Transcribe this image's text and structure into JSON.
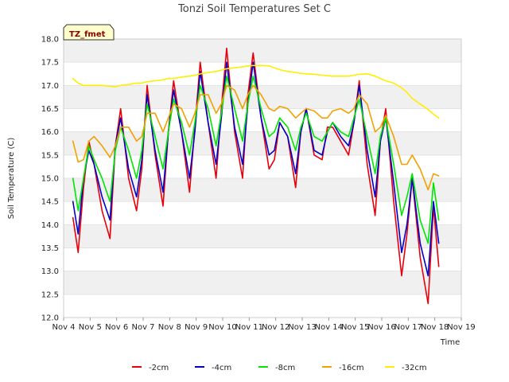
{
  "chart_data": {
    "type": "line",
    "title": "Tonzi Soil Temperatures Set C",
    "xlabel": "Time",
    "ylabel": "Soil Temperature (C)",
    "badge": "TZ_fmet",
    "x_ticks": [
      "Nov 4",
      "Nov 5",
      "Nov 6",
      "Nov 7",
      "Nov 8",
      "Nov 9",
      "Nov 10",
      "Nov 11",
      "Nov 12",
      "Nov 13",
      "Nov 14",
      "Nov 15",
      "Nov 16",
      "Nov 17",
      "Nov 18",
      "Nov 19"
    ],
    "y_ticks": [
      "12.0",
      "12.5",
      "13.0",
      "13.5",
      "14.0",
      "14.5",
      "15.0",
      "15.5",
      "16.0",
      "16.5",
      "17.0",
      "17.5",
      "18.0"
    ],
    "xlim": [
      4,
      19
    ],
    "ylim": [
      12.0,
      18.0
    ],
    "grid": true,
    "legend_position": "bottom",
    "x": [
      4.35,
      4.55,
      4.75,
      4.95,
      5.15,
      5.45,
      5.75,
      5.95,
      6.15,
      6.45,
      6.75,
      6.95,
      7.15,
      7.45,
      7.75,
      7.95,
      8.15,
      8.45,
      8.75,
      8.95,
      9.15,
      9.45,
      9.75,
      9.95,
      10.15,
      10.45,
      10.75,
      10.95,
      11.15,
      11.45,
      11.75,
      11.95,
      12.15,
      12.45,
      12.75,
      12.95,
      13.15,
      13.45,
      13.75,
      13.95,
      14.15,
      14.45,
      14.75,
      14.95,
      15.15,
      15.45,
      15.75,
      15.95,
      16.15,
      16.45,
      16.75,
      16.95,
      17.15,
      17.45,
      17.75,
      17.95,
      18.15
    ],
    "series": [
      {
        "name": "-2cm",
        "color": "#e8000b",
        "values": [
          14.15,
          13.4,
          14.8,
          15.8,
          15.3,
          14.3,
          13.7,
          15.7,
          16.5,
          15.0,
          14.3,
          15.2,
          17.0,
          15.5,
          14.4,
          16.0,
          17.1,
          16.0,
          14.7,
          16.1,
          17.5,
          16.2,
          15.0,
          16.5,
          17.8,
          16.0,
          15.0,
          16.8,
          17.7,
          16.3,
          15.2,
          15.4,
          16.2,
          15.9,
          14.8,
          16.0,
          16.5,
          15.5,
          15.4,
          16.1,
          16.1,
          15.8,
          15.5,
          16.2,
          17.1,
          15.3,
          14.2,
          15.8,
          16.5,
          14.5,
          12.9,
          13.8,
          15.0,
          13.3,
          12.3,
          14.4,
          13.1
        ]
      },
      {
        "name": "-4cm",
        "color": "#0000cc",
        "values": [
          14.5,
          13.8,
          15.0,
          15.6,
          15.3,
          14.6,
          14.1,
          15.7,
          16.3,
          15.2,
          14.6,
          15.4,
          16.8,
          15.6,
          14.7,
          16.0,
          16.9,
          16.0,
          15.0,
          16.0,
          17.3,
          16.2,
          15.3,
          16.3,
          17.5,
          16.1,
          15.3,
          16.6,
          17.5,
          16.3,
          15.5,
          15.6,
          16.2,
          15.9,
          15.1,
          16.0,
          16.5,
          15.6,
          15.5,
          16.0,
          16.2,
          15.9,
          15.7,
          16.2,
          17.0,
          15.6,
          14.6,
          15.8,
          16.3,
          14.9,
          13.4,
          14.0,
          15.0,
          13.6,
          12.9,
          14.5,
          13.6
        ]
      },
      {
        "name": "-8cm",
        "color": "#00e600",
        "values": [
          15.0,
          14.3,
          15.0,
          15.7,
          15.4,
          15.0,
          14.5,
          15.6,
          16.1,
          15.6,
          15.0,
          15.6,
          16.6,
          15.9,
          15.2,
          16.0,
          16.7,
          16.2,
          15.5,
          16.2,
          17.0,
          16.5,
          15.7,
          16.4,
          17.2,
          16.5,
          15.8,
          16.6,
          17.2,
          16.5,
          15.9,
          16.0,
          16.3,
          16.1,
          15.6,
          16.1,
          16.4,
          15.9,
          15.8,
          16.0,
          16.2,
          16.0,
          15.9,
          16.3,
          16.7,
          15.9,
          15.1,
          15.9,
          16.3,
          15.3,
          14.2,
          14.6,
          15.1,
          14.1,
          13.6,
          14.9,
          14.1
        ]
      },
      {
        "name": "-16cm",
        "color": "#f2a100",
        "values": [
          15.8,
          15.35,
          15.4,
          15.8,
          15.9,
          15.7,
          15.45,
          15.7,
          16.1,
          16.1,
          15.8,
          15.9,
          16.4,
          16.4,
          16.0,
          16.3,
          16.6,
          16.5,
          16.1,
          16.4,
          16.8,
          16.8,
          16.4,
          16.6,
          17.0,
          16.9,
          16.5,
          16.8,
          17.0,
          16.8,
          16.5,
          16.45,
          16.55,
          16.5,
          16.3,
          16.4,
          16.5,
          16.45,
          16.3,
          16.3,
          16.45,
          16.5,
          16.4,
          16.5,
          16.8,
          16.6,
          16.0,
          16.1,
          16.35,
          15.9,
          15.3,
          15.3,
          15.5,
          15.2,
          14.75,
          15.1,
          15.05
        ]
      },
      {
        "name": "-32cm",
        "color": "#ffee00",
        "values": [
          17.15,
          17.05,
          17.0,
          17.0,
          17.0,
          17.0,
          16.98,
          16.97,
          17.0,
          17.02,
          17.05,
          17.05,
          17.08,
          17.1,
          17.12,
          17.15,
          17.15,
          17.18,
          17.2,
          17.22,
          17.25,
          17.28,
          17.3,
          17.33,
          17.36,
          17.38,
          17.4,
          17.42,
          17.43,
          17.43,
          17.42,
          17.38,
          17.34,
          17.3,
          17.28,
          17.26,
          17.25,
          17.24,
          17.22,
          17.21,
          17.2,
          17.2,
          17.2,
          17.22,
          17.24,
          17.25,
          17.2,
          17.15,
          17.1,
          17.05,
          16.95,
          16.85,
          16.72,
          16.6,
          16.48,
          16.38,
          16.3
        ]
      }
    ]
  }
}
